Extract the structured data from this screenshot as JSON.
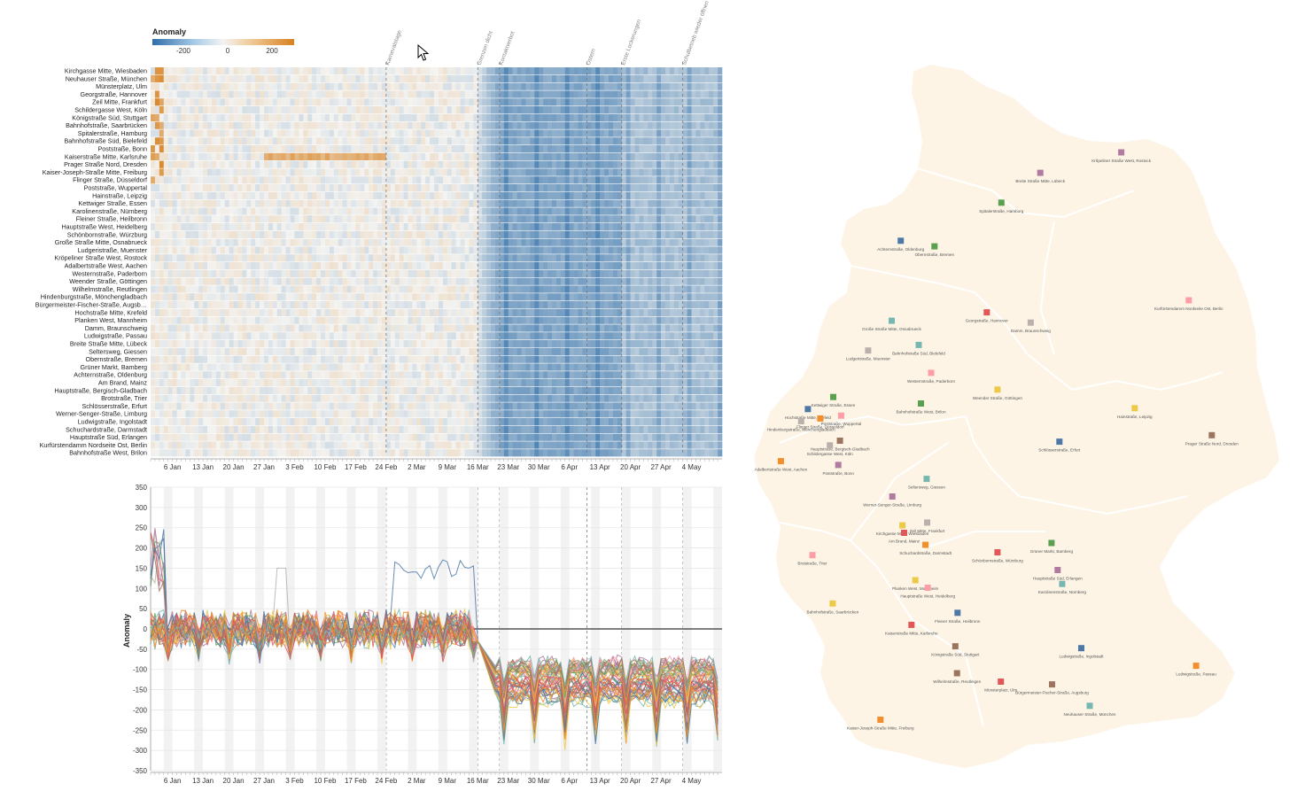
{
  "legend": {
    "title": "Anomaly",
    "ticks": [
      "-200",
      "0",
      "200"
    ]
  },
  "x_ticks": [
    "6 Jan",
    "13 Jan",
    "20 Jan",
    "27 Jan",
    "3 Feb",
    "10 Feb",
    "17 Feb",
    "24 Feb",
    "2 Mar",
    "9 Mar",
    "16 Mar",
    "23 Mar",
    "30 Mar",
    "6 Apr",
    "13 Apr",
    "20 Apr",
    "27 Apr",
    "4 May"
  ],
  "events": [
    {
      "day": 54,
      "label": "Karnevalstage"
    },
    {
      "day": 75,
      "label": "Grenzen dicht"
    },
    {
      "day": 80,
      "label": "Kontaktverbot"
    },
    {
      "day": 100,
      "label": "Ostern"
    },
    {
      "day": 108,
      "label": "Erste Lockerungen"
    },
    {
      "day": 122,
      "label": "Schulbetrieb wieder öffnen"
    }
  ],
  "line_axis_label": "Anomaly",
  "line_y_ticks": [
    "350",
    "300",
    "250",
    "200",
    "150",
    "100",
    "50",
    "0",
    "-50",
    "-100",
    "-150",
    "-200",
    "-250",
    "-300",
    "-350"
  ],
  "chart_data": [
    {
      "type": "heatmap",
      "title": "",
      "xlabel": "",
      "ylabel": "",
      "x_range": [
        "2020-01-01",
        "2020-05-10"
      ],
      "color_scale": {
        "min": -300,
        "mid": 0,
        "max": 300,
        "low_color": "#2f6ea8",
        "mid_color": "#f3f3f1",
        "high_color": "#d7811f"
      },
      "rows": [
        "Kirchgasse Mitte, Wiesbaden",
        "Neuhauser Straße, München",
        "Münsterplatz, Ulm",
        "Georgstraße, Hannover",
        "Zeil Mitte, Frankfurt",
        "Schildergasse West, Köln",
        "Königstraße Süd, Stuttgart",
        "Bahnhofstraße, Saarbrücken",
        "Spitalerstraße, Hamburg",
        "Bahnhofstraße Süd, Bielefeld",
        "Poststraße, Bonn",
        "Kaiserstraße Mitte, Karlsruhe",
        "Prager Straße Nord, Dresden",
        "Kaiser-Joseph-Straße Mitte, Freiburg",
        "Flinger Straße, Düsseldorf",
        "Poststraße, Wuppertal",
        "Hainstraße, Leipzig",
        "Kettwiger Straße, Essen",
        "Karolinenstraße, Nürnberg",
        "Fleiner Straße, Heilbronn",
        "Hauptstraße West, Heidelberg",
        "Schönbornstraße, Würzburg",
        "Große Straße Mitte, Osnabrueck",
        "Ludgeristraße, Muenster",
        "Kröpeliner Straße West, Rostock",
        "Adalbertstraße West, Aachen",
        "Westernstraße, Paderborn",
        "Weender Straße, Göttingen",
        "Wilhelmstraße, Reutlingen",
        "Hindenburgstraße, Mönchengladbach",
        "Bürgermeister-Fischer-Straße, Augsb…",
        "Hochstraße Mitte, Krefeld",
        "Planken West, Mannheim",
        "Damm, Braunschweig",
        "Ludwigstraße, Passau",
        "Breite Straße Mitte, Lübeck",
        "Seltersweg, Giessen",
        "Obernstraße, Bremen",
        "Grüner Markt, Bamberg",
        "Achternstraße, Oldenburg",
        "Am Brand, Mainz",
        "Hauptstraße, Bergisch-Gladbach",
        "Brotstraße, Trier",
        "Schlösserstraße, Erfurt",
        "Werner-Senger-Straße, Limburg",
        "Ludwigstraße, Ingolstadt",
        "Schuchardstraße, Darmstadt",
        "Hauptstraße Süd, Erlangen",
        "Kurfürstendamm Nordseite Ost, Berlin",
        "Bahnhofstraße West, Brilon"
      ],
      "pattern": {
        "pre_period_mean": 0,
        "post_lockdown_mean": -150,
        "sunday_dip": -60,
        "after_easing_mean": -90
      }
    },
    {
      "type": "line",
      "title": "",
      "xlabel": "",
      "ylabel": "Anomaly",
      "ylim": [
        -350,
        350
      ],
      "x_range": [
        "2020-01-01",
        "2020-05-10"
      ],
      "series_count": 50,
      "pattern": {
        "pre_lockdown_mean": 0,
        "lockdown_mean": -160,
        "lockdown_min": -340,
        "pre_peak": 300
      }
    },
    {
      "type": "scatter",
      "title": "",
      "points": [
        {
          "label": "Krõpeliner Straße West, Rostock",
          "x": 12.13,
          "y": 54.09,
          "color": "#b07aa1"
        },
        {
          "label": "Breite Straße Mitte, Lübeck",
          "x": 10.69,
          "y": 53.87,
          "color": "#b07aa1"
        },
        {
          "label": "Spitalerstraße, Hamburg",
          "x": 10.0,
          "y": 53.55,
          "color": "#59a14f"
        },
        {
          "label": "Achternstraße, Oldenburg",
          "x": 8.21,
          "y": 53.14,
          "color": "#4e79a7"
        },
        {
          "label": "Obernstraße, Bremen",
          "x": 8.81,
          "y": 53.08,
          "color": "#59a14f"
        },
        {
          "label": "Kurfürstendamm Nordseite Ost, Berlin",
          "x": 13.33,
          "y": 52.5,
          "color": "#ff9da7"
        },
        {
          "label": "Georgstraße, Hannover",
          "x": 9.74,
          "y": 52.37,
          "color": "#e15759"
        },
        {
          "label": "Damm, Braunschweig",
          "x": 10.52,
          "y": 52.26,
          "color": "#bab0ac"
        },
        {
          "label": "Große Straße Mitte, Osnabrueck",
          "x": 8.05,
          "y": 52.28,
          "color": "#76b7b2"
        },
        {
          "label": "Bahnhofstraße Süd, Bielefeld",
          "x": 8.53,
          "y": 52.02,
          "color": "#76b7b2"
        },
        {
          "label": "Ludgeristraße, Muenster",
          "x": 7.63,
          "y": 51.96,
          "color": "#bab0ac"
        },
        {
          "label": "Westernstraße, Paderborn",
          "x": 8.75,
          "y": 51.72,
          "color": "#ff9da7"
        },
        {
          "label": "Weender Straße, Göttingen",
          "x": 9.93,
          "y": 51.54,
          "color": "#edc948"
        },
        {
          "label": "Hainstraße, Leipzig",
          "x": 12.37,
          "y": 51.34,
          "color": "#edc948"
        },
        {
          "label": "Prager Straße Nord, Dresden",
          "x": 13.74,
          "y": 51.05,
          "color": "#9c755f"
        },
        {
          "label": "Kettwiger Straße, Essen",
          "x": 7.01,
          "y": 51.46,
          "color": "#59a14f"
        },
        {
          "label": "Bahnhofstraße West, Brilon",
          "x": 8.57,
          "y": 51.39,
          "color": "#59a14f"
        },
        {
          "label": "Hochstraße Mitte, Krefeld",
          "x": 6.56,
          "y": 51.33,
          "color": "#4e79a7"
        },
        {
          "label": "Flinger Straße, Düsseldorf",
          "x": 6.78,
          "y": 51.23,
          "color": "#f28e2b"
        },
        {
          "label": "Poststraße, Wuppertal",
          "x": 7.15,
          "y": 51.26,
          "color": "#ff9da7"
        },
        {
          "label": "Hindenburgstraße, Mönchengladbach",
          "x": 6.44,
          "y": 51.2,
          "color": "#bab0ac"
        },
        {
          "label": "Hauptstraße, Bergisch-Gladbach",
          "x": 7.13,
          "y": 50.99,
          "color": "#9c755f"
        },
        {
          "label": "Schildergasse West, Köln",
          "x": 6.95,
          "y": 50.94,
          "color": "#bab0ac"
        },
        {
          "label": "Adalbertstraße West, Aachen",
          "x": 6.08,
          "y": 50.77,
          "color": "#f28e2b"
        },
        {
          "label": "Poststraße, Bonn",
          "x": 7.1,
          "y": 50.73,
          "color": "#b07aa1"
        },
        {
          "label": "Schlösserstraße, Erfurt",
          "x": 11.03,
          "y": 50.98,
          "color": "#4e79a7"
        },
        {
          "label": "Seltersweg, Giessen",
          "x": 8.67,
          "y": 50.58,
          "color": "#76b7b2"
        },
        {
          "label": "Werner-Senger-Straße, Limburg",
          "x": 8.06,
          "y": 50.39,
          "color": "#b07aa1"
        },
        {
          "label": "Kirchgasse Mitte, Wiesbaden",
          "x": 8.24,
          "y": 50.08,
          "color": "#edc948"
        },
        {
          "label": "Zeil Mitte, Frankfurt",
          "x": 8.68,
          "y": 50.11,
          "color": "#bab0ac"
        },
        {
          "label": "Am Brand, Mainz",
          "x": 8.27,
          "y": 50.0,
          "color": "#e15759"
        },
        {
          "label": "Schuchardstraße, Darmstadt",
          "x": 8.65,
          "y": 49.87,
          "color": "#f28e2b"
        },
        {
          "label": "Grüner Markt, Bamberg",
          "x": 10.89,
          "y": 49.89,
          "color": "#59a14f"
        },
        {
          "label": "Schönbornstraße, Würzburg",
          "x": 9.93,
          "y": 49.79,
          "color": "#e15759"
        },
        {
          "label": "Brotstraße, Trier",
          "x": 6.64,
          "y": 49.76,
          "color": "#ff9da7"
        },
        {
          "label": "Hauptstraße Süd, Erlangen",
          "x": 11.0,
          "y": 49.6,
          "color": "#b07aa1"
        },
        {
          "label": "Karolinenstraße, Nürnberg",
          "x": 11.08,
          "y": 49.45,
          "color": "#76b7b2"
        },
        {
          "label": "Planken West, Mannheim",
          "x": 8.47,
          "y": 49.49,
          "color": "#edc948"
        },
        {
          "label": "Hauptstraße West, Heidelberg",
          "x": 8.69,
          "y": 49.41,
          "color": "#ff9da7"
        },
        {
          "label": "Bahnhofstraße, Saarbrücken",
          "x": 7.0,
          "y": 49.24,
          "color": "#edc948"
        },
        {
          "label": "Fleiner Straße, Heilbronn",
          "x": 9.22,
          "y": 49.14,
          "color": "#4e79a7"
        },
        {
          "label": "Kaiserstraße Mitte, Karlsruhe",
          "x": 8.4,
          "y": 49.01,
          "color": "#e15759"
        },
        {
          "label": "Ludwigstraße, Ingolstadt",
          "x": 11.42,
          "y": 48.76,
          "color": "#4e79a7"
        },
        {
          "label": "Ludwigstraße, Passau",
          "x": 13.46,
          "y": 48.57,
          "color": "#f28e2b"
        },
        {
          "label": "Königstraße Süd, Stuttgart",
          "x": 9.18,
          "y": 48.78,
          "color": "#9c755f"
        },
        {
          "label": "Wilhelmstraße, Reutlingen",
          "x": 9.21,
          "y": 48.49,
          "color": "#9c755f"
        },
        {
          "label": "Münsterplatz, Ulm",
          "x": 9.99,
          "y": 48.4,
          "color": "#e15759"
        },
        {
          "label": "Bürgermeister-Fischer-Straße, Augsburg",
          "x": 10.9,
          "y": 48.37,
          "color": "#9c755f"
        },
        {
          "label": "Neuhauser Straße, München",
          "x": 11.57,
          "y": 48.14,
          "color": "#76b7b2"
        },
        {
          "label": "Kaiser-Joseph-Straße Mitte, Freiburg",
          "x": 7.85,
          "y": 47.99,
          "color": "#f28e2b"
        }
      ]
    }
  ]
}
